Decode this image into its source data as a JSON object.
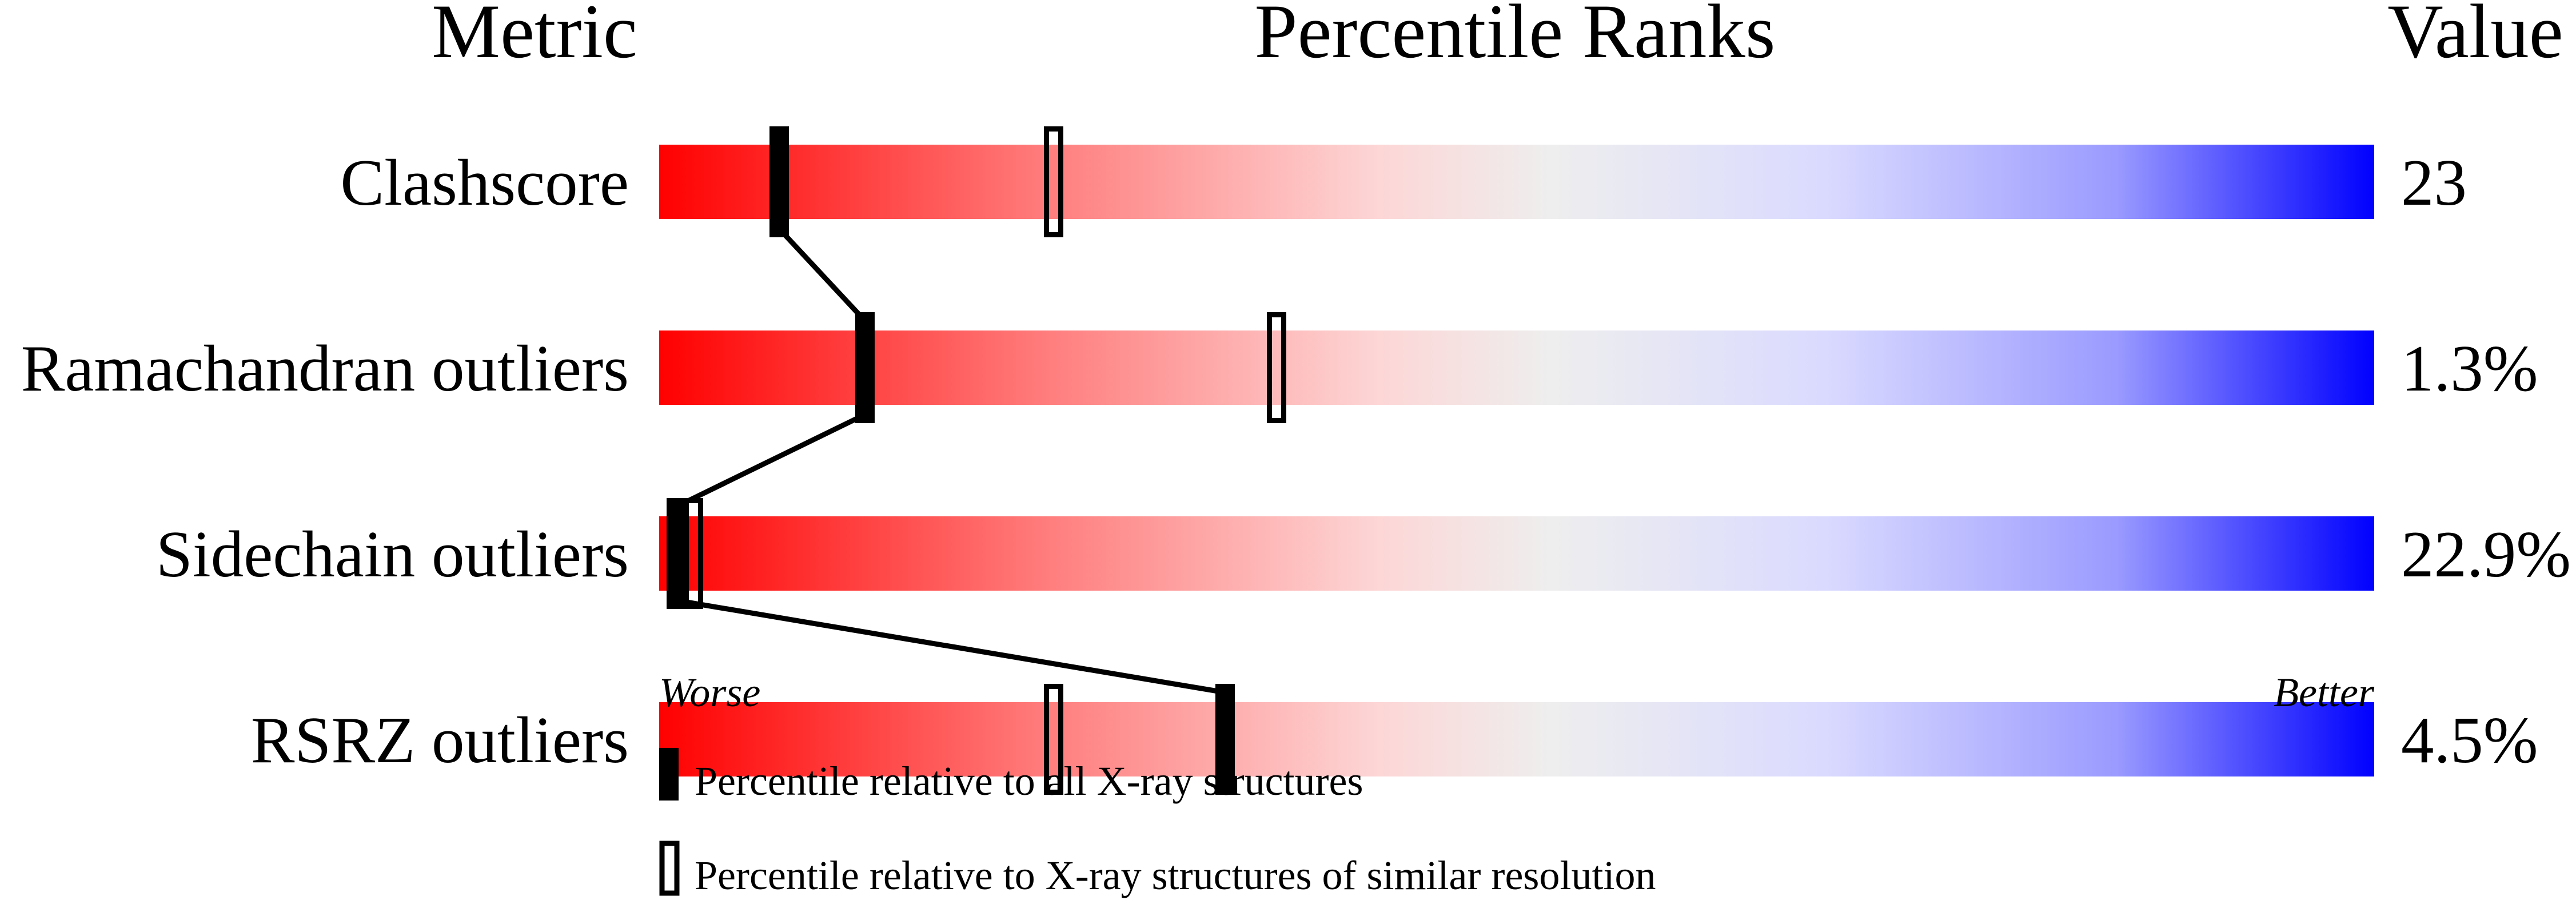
{
  "chart_data": {
    "type": "percentile-slider",
    "headers": {
      "metric": "Metric",
      "ranks": "Percentile Ranks",
      "value": "Value"
    },
    "xlim": [
      0,
      100
    ],
    "axis_labels": {
      "left": "Worse",
      "right": "Better"
    },
    "colors": {
      "worse": "#ff0000",
      "middle": "#eeeeee",
      "better": "#0000ff",
      "marker": "#000000"
    },
    "rows": [
      {
        "metric": "Clashscore",
        "value": "23",
        "percentile_all": 7,
        "percentile_similar": 23
      },
      {
        "metric": "Ramachandran outliers",
        "value": "1.3%",
        "percentile_all": 12,
        "percentile_similar": 36
      },
      {
        "metric": "Sidechain outliers",
        "value": "22.9%",
        "percentile_all": 1,
        "percentile_similar": 2
      },
      {
        "metric": "RSRZ outliers",
        "value": "4.5%",
        "percentile_all": 33,
        "percentile_similar": 23
      }
    ],
    "legend": [
      {
        "marker": "filled",
        "label": "Percentile relative to all X-ray structures"
      },
      {
        "marker": "open",
        "label": "Percentile relative to X-ray structures of similar resolution"
      }
    ]
  }
}
